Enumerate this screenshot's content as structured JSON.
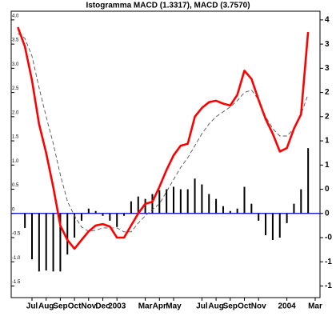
{
  "chart_data": {
    "type": "macd",
    "title": "Istogramma MACD (1.3317), MACD (3.7570)",
    "categories": [
      null,
      null,
      "Jul",
      null,
      "Aug",
      null,
      "Sep",
      null,
      "Oct",
      null,
      "Nov",
      null,
      "Dec",
      null,
      "2003",
      null,
      null,
      null,
      "Mar",
      null,
      "Apr",
      null,
      "May",
      null,
      null,
      null,
      "Jul",
      null,
      "Aug",
      null,
      "Sep",
      null,
      "Oct",
      null,
      "Nov",
      null,
      null,
      null,
      "2004",
      null,
      null,
      null,
      "Mar"
    ],
    "series": [
      {
        "type": "bar",
        "color": "#000000",
        "values": [
          0.0,
          -0.3,
          -0.95,
          -1.2,
          -1.18,
          -1.2,
          -1.2,
          -0.85,
          -0.5,
          -0.15,
          0.1,
          0.05,
          -0.05,
          -0.15,
          -0.28,
          -0.05,
          0.25,
          0.35,
          0.3,
          0.4,
          0.48,
          0.5,
          0.55,
          0.5,
          0.5,
          0.72,
          0.6,
          0.4,
          0.3,
          0.15,
          0.05,
          0.1,
          0.55,
          0.2,
          -0.15,
          -0.45,
          -0.55,
          -0.5,
          -0.2,
          0.2,
          0.5,
          1.35,
          null
        ]
      },
      {
        "type": "line",
        "color": "#555555",
        "dashed": true,
        "values": [
          3.72,
          3.62,
          3.25,
          2.6,
          2.0,
          1.45,
          0.8,
          0.25,
          -0.05,
          -0.28,
          -0.37,
          -0.35,
          -0.3,
          -0.3,
          -0.3,
          -0.38,
          -0.38,
          -0.2,
          -0.05,
          0.08,
          0.2,
          0.45,
          0.7,
          0.95,
          1.15,
          1.4,
          1.65,
          1.85,
          2.0,
          2.1,
          2.2,
          2.33,
          2.5,
          2.55,
          2.35,
          2.0,
          1.75,
          1.6,
          1.6,
          1.75,
          2.05,
          2.46,
          null
        ]
      },
      {
        "type": "line",
        "color": "#ff0000",
        "dashed": false,
        "values": [
          3.85,
          3.45,
          2.75,
          1.85,
          1.25,
          0.55,
          -0.25,
          -0.55,
          -0.73,
          -0.55,
          -0.37,
          -0.25,
          -0.22,
          -0.27,
          -0.5,
          -0.5,
          -0.25,
          0.0,
          0.2,
          0.24,
          0.55,
          0.9,
          1.2,
          1.4,
          1.44,
          2.0,
          2.18,
          2.3,
          2.33,
          2.27,
          2.23,
          2.45,
          2.95,
          2.78,
          2.35,
          1.95,
          1.65,
          1.28,
          1.35,
          1.75,
          2.05,
          3.75,
          null
        ]
      }
    ],
    "zero_line_color": "#0000cc",
    "ylim": [
      -1.74,
      4.18
    ],
    "yticks": [
      {
        "value": 4,
        "label": "4.0"
      },
      3.5,
      {
        "value": 3,
        "label": "3.0"
      },
      2.5,
      {
        "value": 2,
        "label": "2.0"
      },
      1.5,
      {
        "value": 1,
        "label": "1.0"
      },
      0.5,
      0,
      -0.5,
      {
        "value": -1,
        "label": "-1.0"
      },
      -1.5
    ],
    "yticks_right": [
      4,
      {
        "value": 3.5,
        "label": "3"
      },
      3,
      {
        "value": 2.5,
        "label": "2"
      },
      2,
      {
        "value": 1.5,
        "label": "1"
      },
      1,
      {
        "value": 0.5,
        "label": "0"
      },
      0,
      {
        "value": -0.5,
        "label": "-0"
      },
      -1,
      {
        "value": -1.5,
        "label": "-1"
      }
    ]
  }
}
